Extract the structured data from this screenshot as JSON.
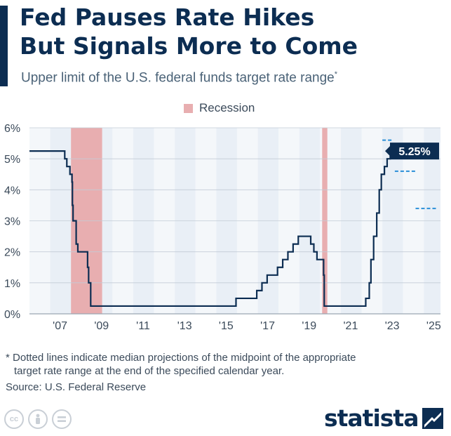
{
  "header": {
    "title_line1": "Fed Pauses Rate Hikes",
    "title_line2": "But Signals More to Come",
    "subtitle": "Upper limit of the U.S. federal funds target rate range",
    "subtitle_mark": "*"
  },
  "legend": {
    "label": "Recession",
    "color": "#e8aeb0"
  },
  "chart_data": {
    "type": "line",
    "y_axis": {
      "ticks": [
        "0%",
        "1%",
        "2%",
        "3%",
        "4%",
        "5%",
        "6%"
      ],
      "range": [
        0,
        6
      ],
      "unit": "%"
    },
    "x_axis": {
      "range": [
        2006.0,
        2025.8
      ],
      "tick_labels": [
        "'07",
        "'09",
        "'11",
        "'13",
        "'15",
        "'17",
        "'19",
        "'21",
        "'23",
        "'25"
      ],
      "tick_years": [
        2007,
        2009,
        2011,
        2013,
        2015,
        2017,
        2019,
        2021,
        2023,
        2025
      ]
    },
    "grid": true,
    "recessions": [
      {
        "start": 2008.0,
        "end": 2009.5
      },
      {
        "start": 2020.1,
        "end": 2020.35
      }
    ],
    "series": [
      {
        "name": "",
        "color": "#0c2d52",
        "steps": [
          [
            2006.0,
            5.25
          ],
          [
            2007.7,
            5.0
          ],
          [
            2007.8,
            4.75
          ],
          [
            2007.95,
            4.5
          ],
          [
            2008.05,
            4.25
          ],
          [
            2008.07,
            3.5
          ],
          [
            2008.1,
            3.0
          ],
          [
            2008.25,
            2.25
          ],
          [
            2008.33,
            2.0
          ],
          [
            2008.8,
            1.5
          ],
          [
            2008.85,
            1.0
          ],
          [
            2008.95,
            0.25
          ],
          [
            2015.95,
            0.5
          ],
          [
            2016.95,
            0.75
          ],
          [
            2017.2,
            1.0
          ],
          [
            2017.45,
            1.25
          ],
          [
            2017.95,
            1.5
          ],
          [
            2018.2,
            1.75
          ],
          [
            2018.45,
            2.0
          ],
          [
            2018.7,
            2.25
          ],
          [
            2018.95,
            2.5
          ],
          [
            2019.55,
            2.25
          ],
          [
            2019.7,
            2.0
          ],
          [
            2019.85,
            1.75
          ],
          [
            2020.17,
            1.25
          ],
          [
            2020.2,
            0.25
          ],
          [
            2022.2,
            0.5
          ],
          [
            2022.37,
            1.0
          ],
          [
            2022.45,
            1.75
          ],
          [
            2022.58,
            2.5
          ],
          [
            2022.73,
            3.25
          ],
          [
            2022.85,
            4.0
          ],
          [
            2022.95,
            4.5
          ],
          [
            2023.1,
            4.75
          ],
          [
            2023.23,
            5.0
          ],
          [
            2023.38,
            5.25
          ],
          [
            2023.5,
            5.25
          ]
        ]
      }
    ],
    "projections": [
      {
        "year_start": 2023.0,
        "year_end": 2023.5,
        "value": 5.6
      },
      {
        "year_start": 2023.6,
        "year_end": 2024.6,
        "value": 4.6
      },
      {
        "year_start": 2024.6,
        "year_end": 2025.6,
        "value": 3.4
      }
    ],
    "callout": {
      "text": "5.25%",
      "value": 5.25
    }
  },
  "footnote": {
    "mark": "*",
    "line1": "Dotted lines indicate median projections of the midpoint of the appropriate",
    "line2": "target rate range at the end of the specified calendar year."
  },
  "source": "Source: U.S. Federal Reserve",
  "license_icons": [
    "cc-icon",
    "attribution-icon",
    "no-derivatives-icon"
  ],
  "brand": {
    "name": "statista"
  }
}
